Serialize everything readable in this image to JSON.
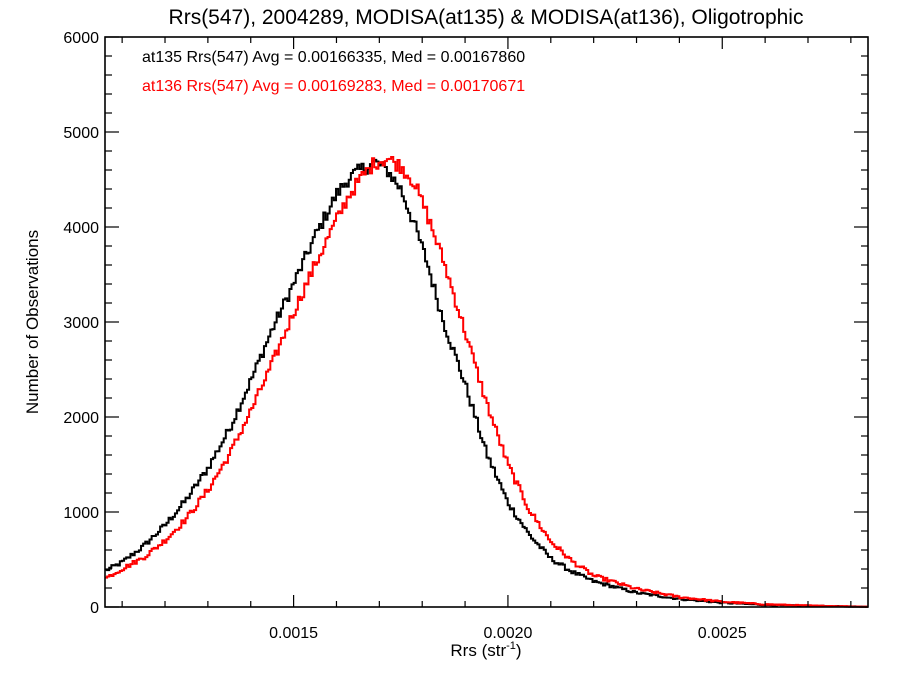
{
  "chart_data": {
    "type": "line",
    "step": true,
    "title": "Rrs(547), 2004289, MODISA(at135) & MODISA(at136), Oligotrophic",
    "xlabel_main": "Rrs (str",
    "xlabel_sup": "-1",
    "xlabel_close": ")",
    "ylabel": "Number of Observations",
    "xlim": [
      0.00106,
      0.00284
    ],
    "ylim": [
      0,
      6000
    ],
    "x_ticks": [
      0.0015,
      0.002,
      0.0025
    ],
    "x_tick_labels": [
      "0.0015",
      "0.0020",
      "0.0025"
    ],
    "y_ticks": [
      0,
      1000,
      2000,
      3000,
      4000,
      5000,
      6000
    ],
    "y_tick_labels": [
      "0",
      "1000",
      "2000",
      "3000",
      "4000",
      "5000",
      "6000"
    ],
    "grid": false,
    "annotations": [
      {
        "text": "at135 Rrs(547) Avg = 0.00166335, Med = 0.00167860",
        "color": "#000000"
      },
      {
        "text": "at136 Rrs(547) Avg = 0.00169283, Med = 0.00170671",
        "color": "#ff0000"
      }
    ],
    "series": [
      {
        "color": "#000000",
        "x": [
          0.00106,
          0.0011,
          0.00115,
          0.0012,
          0.00125,
          0.0013,
          0.00135,
          0.0014,
          0.00145,
          0.0015,
          0.00155,
          0.0016,
          0.00163,
          0.00166,
          0.00169,
          0.00172,
          0.00175,
          0.00178,
          0.00181,
          0.00185,
          0.0019,
          0.00195,
          0.002,
          0.00205,
          0.0021,
          0.00215,
          0.0022,
          0.0023,
          0.0024,
          0.0025,
          0.0026,
          0.0027,
          0.0028,
          0.00284
        ],
        "y": [
          380,
          470,
          640,
          860,
          1130,
          1460,
          1870,
          2380,
          2920,
          3400,
          3900,
          4340,
          4520,
          4610,
          4680,
          4590,
          4400,
          4050,
          3650,
          3000,
          2350,
          1620,
          1100,
          760,
          510,
          370,
          270,
          150,
          85,
          45,
          22,
          12,
          5,
          3
        ]
      },
      {
        "color": "#ff0000",
        "x": [
          0.00106,
          0.0011,
          0.00115,
          0.0012,
          0.00125,
          0.0013,
          0.00135,
          0.0014,
          0.00145,
          0.0015,
          0.00155,
          0.0016,
          0.00163,
          0.00166,
          0.00169,
          0.00172,
          0.00175,
          0.00178,
          0.00181,
          0.00185,
          0.0019,
          0.00195,
          0.002,
          0.00205,
          0.0021,
          0.00215,
          0.0022,
          0.0023,
          0.0024,
          0.0025,
          0.0026,
          0.0027,
          0.0028,
          0.00284
        ],
        "y": [
          300,
          400,
          520,
          700,
          930,
          1230,
          1600,
          2060,
          2560,
          3100,
          3600,
          4070,
          4340,
          4530,
          4680,
          4720,
          4640,
          4480,
          4150,
          3640,
          2900,
          2150,
          1500,
          1020,
          690,
          480,
          330,
          190,
          105,
          55,
          28,
          15,
          6,
          3
        ]
      }
    ]
  }
}
